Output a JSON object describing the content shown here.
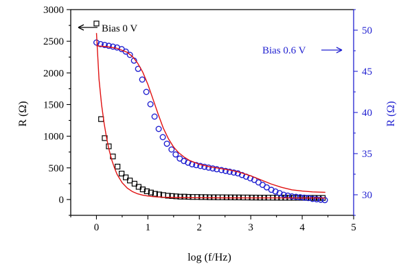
{
  "chart_data": {
    "type": "scatter",
    "xlabel": "log (f/Hz)",
    "ylabel_left": "R (Ω)",
    "ylabel_right": "R (Ω)",
    "xlim": [
      -0.5,
      5
    ],
    "ylim_left": [
      -250,
      3000
    ],
    "ylim_right": [
      27.5,
      52.5
    ],
    "x_ticks": [
      "0",
      "1",
      "2",
      "3",
      "4",
      "5"
    ],
    "y_left_ticks": [
      "0",
      "500",
      "1000",
      "1500",
      "2000",
      "2500",
      "3000"
    ],
    "y_right_ticks": [
      "30",
      "35",
      "40",
      "45",
      "50"
    ],
    "grid": false,
    "annotations": [
      {
        "text": "Bias 0 V",
        "arrow": "left",
        "color": "#000000"
      },
      {
        "text": "Bias 0.6 V",
        "arrow": "right",
        "color": "#1f1fd0"
      }
    ],
    "colors": {
      "bias0": "#000000",
      "bias06": "#1f1fd0",
      "fit": "#e01010",
      "right_axis": "#1f1fd0"
    },
    "series": [
      {
        "axis": "left",
        "marker": "square",
        "color": "#000000",
        "x": [
          0.0,
          0.09,
          0.16,
          0.24,
          0.32,
          0.41,
          0.49,
          0.57,
          0.65,
          0.74,
          0.82,
          0.9,
          0.98,
          1.06,
          1.14,
          1.22,
          1.3,
          1.39,
          1.47,
          1.55,
          1.63,
          1.71,
          1.79,
          1.87,
          1.96,
          2.04,
          2.12,
          2.2,
          2.28,
          2.36,
          2.45,
          2.53,
          2.61,
          2.69,
          2.77,
          2.85,
          2.94,
          3.02,
          3.1,
          3.18,
          3.26,
          3.34,
          3.43,
          3.51,
          3.59,
          3.67,
          3.75,
          3.83,
          3.92,
          4.0,
          4.08,
          4.16,
          4.24,
          4.32,
          4.4
        ],
        "y": [
          2780,
          1270,
          970,
          840,
          680,
          520,
          410,
          350,
          300,
          250,
          200,
          160,
          130,
          110,
          90,
          80,
          70,
          60,
          55,
          50,
          45,
          45,
          42,
          40,
          40,
          38,
          38,
          36,
          36,
          35,
          35,
          34,
          34,
          33,
          33,
          32,
          32,
          31,
          31,
          30,
          30,
          30,
          29,
          29,
          28,
          28,
          28,
          27,
          27,
          27,
          26,
          26,
          26,
          25,
          25
        ]
      },
      {
        "axis": "right",
        "marker": "circle",
        "color": "#1f1fd0",
        "x": [
          0.0,
          0.08,
          0.16,
          0.24,
          0.32,
          0.4,
          0.49,
          0.57,
          0.65,
          0.73,
          0.81,
          0.89,
          0.97,
          1.05,
          1.13,
          1.21,
          1.29,
          1.37,
          1.46,
          1.54,
          1.62,
          1.7,
          1.78,
          1.86,
          1.94,
          2.02,
          2.1,
          2.18,
          2.26,
          2.34,
          2.43,
          2.51,
          2.59,
          2.67,
          2.75,
          2.83,
          2.91,
          2.99,
          3.07,
          3.15,
          3.23,
          3.31,
          3.4,
          3.48,
          3.56,
          3.64,
          3.72,
          3.8,
          3.88,
          3.96,
          4.04,
          4.12,
          4.2,
          4.28,
          4.36,
          4.44
        ],
        "y": [
          48.5,
          48.3,
          48.2,
          48.1,
          48.0,
          47.9,
          47.7,
          47.4,
          47.0,
          46.3,
          45.3,
          44.0,
          42.5,
          41.0,
          39.5,
          38.0,
          37.0,
          36.2,
          35.5,
          34.9,
          34.4,
          34.1,
          33.9,
          33.7,
          33.6,
          33.5,
          33.4,
          33.3,
          33.2,
          33.1,
          33.0,
          32.9,
          32.8,
          32.7,
          32.6,
          32.4,
          32.2,
          32.0,
          31.8,
          31.5,
          31.2,
          30.9,
          30.6,
          30.4,
          30.2,
          30.0,
          29.9,
          29.8,
          29.75,
          29.7,
          29.65,
          29.6,
          29.5,
          29.45,
          29.4,
          29.35
        ]
      },
      {
        "axis": "left",
        "marker": "line",
        "color": "#e01010",
        "x": [
          0.0,
          0.05,
          0.1,
          0.15,
          0.2,
          0.25,
          0.3,
          0.35,
          0.4,
          0.5,
          0.6,
          0.7,
          0.8,
          0.9,
          1.0,
          1.1,
          1.2,
          1.3,
          1.5,
          2.0,
          2.5,
          3.0,
          3.5,
          4.0,
          4.45
        ],
        "y": [
          2630,
          1900,
          1500,
          1200,
          960,
          770,
          620,
          500,
          400,
          265,
          180,
          125,
          90,
          68,
          55,
          46,
          40,
          36,
          32,
          28,
          26,
          25,
          25,
          24,
          24
        ]
      },
      {
        "axis": "right",
        "marker": "line",
        "color": "#e01010",
        "x": [
          0.0,
          0.2,
          0.4,
          0.6,
          0.7,
          0.8,
          0.9,
          1.0,
          1.1,
          1.2,
          1.3,
          1.4,
          1.5,
          1.6,
          1.7,
          1.8,
          2.0,
          2.2,
          2.4,
          2.6,
          2.8,
          3.0,
          3.2,
          3.4,
          3.6,
          3.8,
          4.0,
          4.2,
          4.45
        ],
        "y": [
          48.1,
          48.0,
          47.8,
          47.3,
          46.8,
          46.0,
          44.9,
          43.4,
          41.6,
          39.8,
          38.1,
          36.8,
          35.8,
          35.1,
          34.6,
          34.2,
          33.7,
          33.4,
          33.2,
          33.0,
          32.7,
          32.3,
          31.8,
          31.3,
          30.9,
          30.6,
          30.45,
          30.35,
          30.3
        ]
      }
    ]
  }
}
